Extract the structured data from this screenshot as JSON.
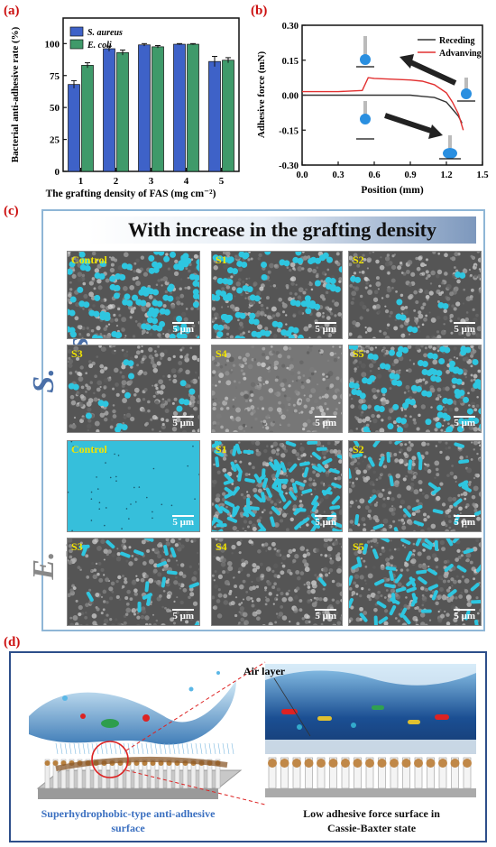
{
  "panel_a": {
    "letter": "(a)",
    "ylabel": "Bacterial anti-adhesive rate (%)",
    "xlabel": "The grafting density of FAS (mg cm⁻²)",
    "legend": [
      "S. aureus",
      "E. coli"
    ],
    "yticks": [
      "0",
      "25",
      "50",
      "75",
      "100"
    ],
    "xticks": [
      "1",
      "2",
      "3",
      "4",
      "5"
    ]
  },
  "panel_b": {
    "letter": "(b)",
    "ylabel": "Adhesive force (mN)",
    "xlabel": "Position (mm)",
    "legend": [
      "Receding",
      "Advanving"
    ],
    "yticks": [
      "0.30",
      "0.15",
      "0.00",
      "-0.15",
      "-0.30"
    ],
    "xticks": [
      "0.0",
      "0.3",
      "0.6",
      "0.9",
      "1.2",
      "1.5"
    ]
  },
  "panel_c": {
    "letter": "(c)",
    "header": "With increase in the grafting density",
    "row_label_s": "S. aureus",
    "row_label_e": "E. coli",
    "scale": "5 μm",
    "s_labels": [
      "Control",
      "S1",
      "S2",
      "S3",
      "S4",
      "S5"
    ],
    "e_labels": [
      "Control",
      "S1",
      "S2",
      "S3",
      "S4",
      "S5"
    ]
  },
  "panel_d": {
    "letter": "(d)",
    "air_layer": "Air layer",
    "left_caption_1": "Superhydrophobic-type anti-adhesive",
    "left_caption_2": "surface",
    "right_caption_1": "Low adhesive force surface in",
    "right_caption_2": "Cassie-Baxter state"
  },
  "colors": {
    "saureus": "#3e62c8",
    "ecoli": "#3f9a6a",
    "receding": "#333333",
    "advancing": "#e23030",
    "bacteria": "#2ec6e0"
  },
  "chart_data": [
    {
      "type": "bar",
      "categories": [
        "1",
        "2",
        "3",
        "4",
        "5"
      ],
      "series": [
        {
          "name": "S. aureus",
          "values": [
            68,
            96,
            99,
            99.5,
            86
          ],
          "errors": [
            3,
            2,
            1,
            0.5,
            4
          ]
        },
        {
          "name": "E. coli",
          "values": [
            83,
            93,
            97.5,
            99.5,
            87
          ],
          "errors": [
            2,
            2,
            1,
            0.5,
            2
          ]
        }
      ],
      "ylim": [
        0,
        120
      ]
    },
    {
      "type": "line",
      "series": [
        {
          "name": "Receding",
          "x": [
            0,
            0.3,
            0.6,
            0.9,
            1.0,
            1.1,
            1.2,
            1.25,
            1.3,
            1.33
          ],
          "y": [
            0,
            0,
            0,
            0,
            -0.005,
            -0.01,
            -0.03,
            -0.06,
            -0.09,
            -0.12
          ]
        },
        {
          "name": "Advanving",
          "x": [
            0,
            0.3,
            0.5,
            0.55,
            0.6,
            0.9,
            1.0,
            1.1,
            1.2,
            1.25,
            1.3,
            1.34
          ],
          "y": [
            0.015,
            0.015,
            0.02,
            0.075,
            0.072,
            0.065,
            0.06,
            0.045,
            0.01,
            -0.03,
            -0.08,
            -0.15
          ]
        }
      ],
      "xlim": [
        0,
        1.5
      ],
      "ylim": [
        -0.3,
        0.3
      ]
    }
  ]
}
